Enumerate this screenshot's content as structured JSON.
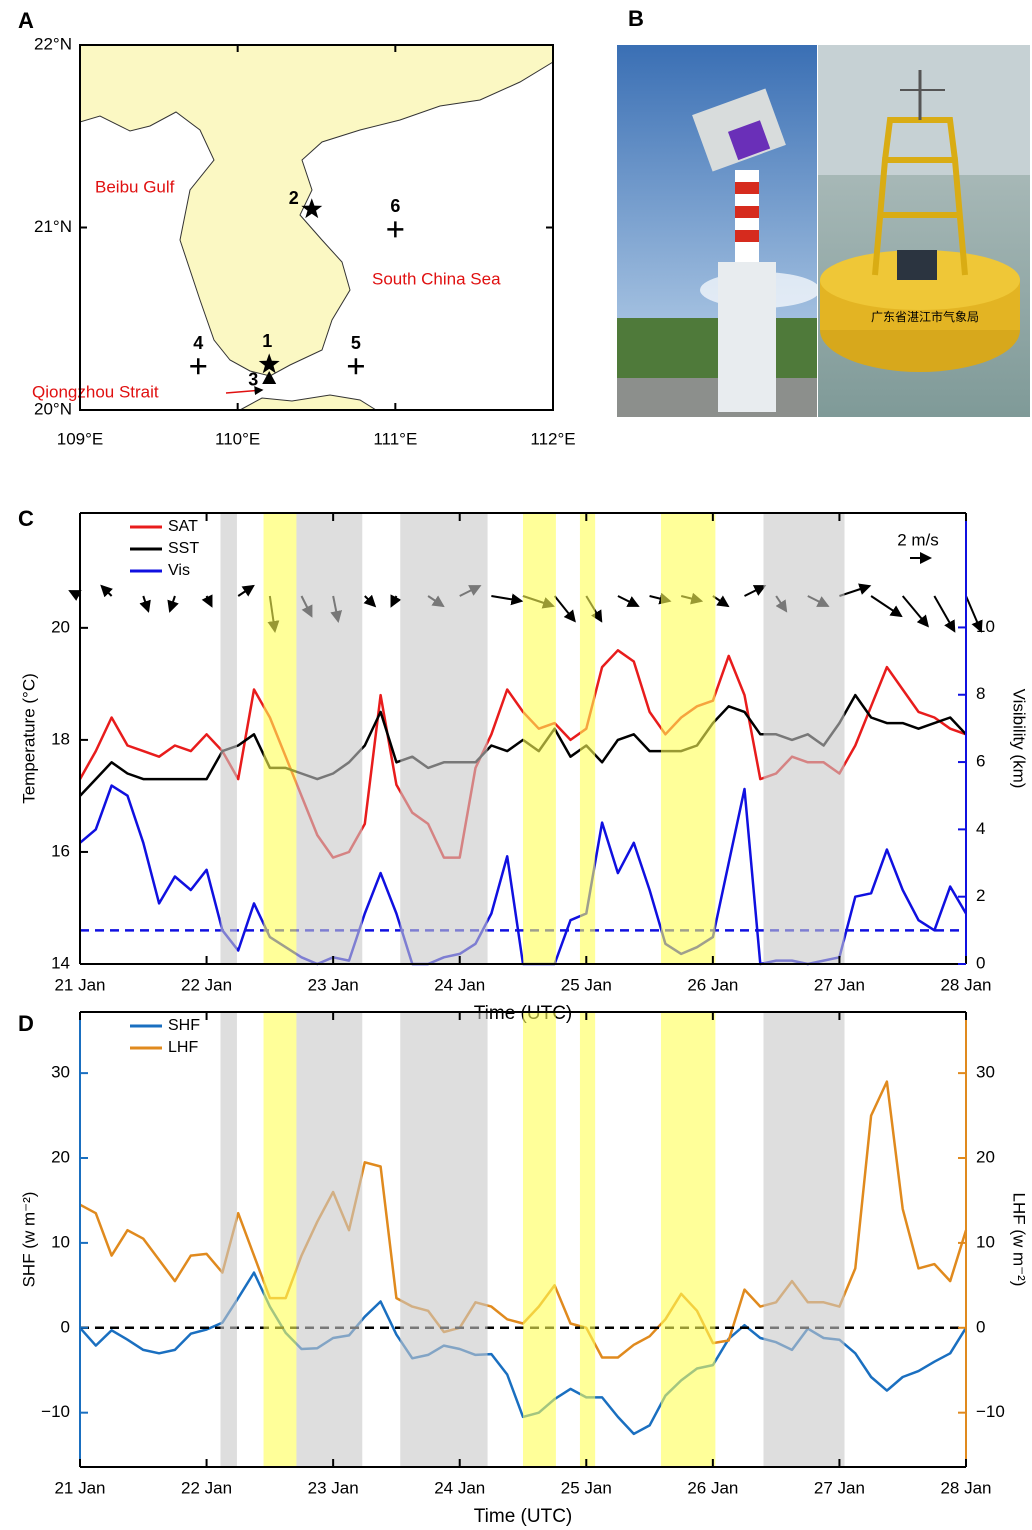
{
  "chart_data": [
    {
      "type": "map",
      "panel_label": "A",
      "xlim": [
        109,
        112
      ],
      "ylim": [
        20,
        22
      ],
      "xticks": [
        {
          "value": 109,
          "label": "109°E"
        },
        {
          "value": 110,
          "label": "110°E"
        },
        {
          "value": 111,
          "label": "111°E"
        },
        {
          "value": 112,
          "label": "112°E"
        }
      ],
      "yticks": [
        {
          "value": 20,
          "label": "20°N"
        },
        {
          "value": 21,
          "label": "21°N"
        },
        {
          "value": 22,
          "label": "22°N"
        }
      ],
      "land_color": "#fbf8c3",
      "sites": [
        {
          "label": "1",
          "lon": 110.2,
          "lat": 20.25,
          "marker": "star"
        },
        {
          "label": "2",
          "lon": 110.47,
          "lat": 21.1,
          "marker": "star"
        },
        {
          "label": "3",
          "lon": 110.2,
          "lat": 20.17,
          "marker": "triangle"
        },
        {
          "label": "4",
          "lon": 109.75,
          "lat": 20.24,
          "marker": "plus"
        },
        {
          "label": "5",
          "lon": 110.75,
          "lat": 20.24,
          "marker": "plus"
        },
        {
          "label": "6",
          "lon": 111.0,
          "lat": 20.99,
          "marker": "plus"
        }
      ],
      "annotations": [
        "Beibu Gulf",
        "South China Sea",
        "Qiongzhou Strait"
      ],
      "annotation_color": "#e01010"
    },
    {
      "type": "line",
      "panel_label": "C",
      "x": [
        0,
        0.125,
        0.25,
        0.375,
        0.5,
        0.625,
        0.75,
        0.875,
        1,
        1.125,
        1.25,
        1.375,
        1.5,
        1.625,
        1.75,
        1.875,
        2,
        2.125,
        2.25,
        2.375,
        2.5,
        2.625,
        2.75,
        2.875,
        3,
        3.125,
        3.25,
        3.375,
        3.5,
        3.625,
        3.75,
        3.875,
        4,
        4.125,
        4.25,
        4.375,
        4.5,
        4.625,
        4.75,
        4.875,
        5,
        5.125,
        5.25,
        5.375,
        5.5,
        5.625,
        5.75,
        5.875,
        6,
        6.125,
        6.25,
        6.375,
        6.5,
        6.625,
        6.75,
        6.875,
        7
      ],
      "xlim": [
        0,
        7
      ],
      "xticks": [
        {
          "value": 0,
          "label": "21 Jan"
        },
        {
          "value": 1,
          "label": "22 Jan"
        },
        {
          "value": 2,
          "label": "23 Jan"
        },
        {
          "value": 3,
          "label": "24 Jan"
        },
        {
          "value": 4,
          "label": "25 Jan"
        },
        {
          "value": 5,
          "label": "26 Jan"
        },
        {
          "value": 6,
          "label": "27 Jan"
        },
        {
          "value": 7,
          "label": "28 Jan"
        }
      ],
      "ylim": [
        14,
        22.05
      ],
      "yticks": [
        14,
        16,
        18,
        20
      ],
      "y2lim": [
        0,
        13.4
      ],
      "y2ticks": [
        0,
        2,
        4,
        6,
        8,
        10
      ],
      "xlabel": "Time (UTC)",
      "ylabel": "Temperature (°C)",
      "y2label": "Visibility (km)",
      "y_axis_color": "#000000",
      "y2_axis_color": "#1010e0",
      "legend": "upper left",
      "series": [
        {
          "name": "SAT",
          "color": "#e81c1c",
          "values": [
            17.3,
            17.8,
            18.4,
            17.9,
            17.8,
            17.7,
            17.9,
            17.8,
            18.1,
            17.8,
            17.3,
            18.9,
            18.4,
            17.7,
            17.0,
            16.3,
            15.9,
            16.0,
            16.5,
            18.8,
            17.2,
            16.7,
            16.5,
            15.9,
            15.9,
            17.5,
            18.1,
            18.9,
            18.5,
            18.2,
            18.3,
            18.0,
            18.2,
            19.3,
            19.6,
            19.4,
            18.5,
            18.1,
            18.4,
            18.6,
            18.7,
            19.5,
            18.8,
            17.3,
            17.4,
            17.7,
            17.6,
            17.6,
            17.4,
            17.9,
            18.6,
            19.3,
            18.9,
            18.5,
            18.4,
            18.2,
            18.1
          ]
        },
        {
          "name": "SST",
          "color": "#000000",
          "values": [
            17.0,
            17.3,
            17.6,
            17.4,
            17.3,
            17.3,
            17.3,
            17.3,
            17.3,
            17.8,
            17.9,
            18.1,
            17.5,
            17.5,
            17.4,
            17.3,
            17.4,
            17.6,
            17.9,
            18.5,
            17.6,
            17.7,
            17.5,
            17.6,
            17.6,
            17.6,
            17.9,
            17.8,
            18.0,
            17.8,
            18.2,
            17.7,
            17.9,
            17.6,
            18.0,
            18.1,
            17.8,
            17.8,
            17.8,
            17.9,
            18.3,
            18.6,
            18.5,
            18.1,
            18.1,
            18.0,
            18.1,
            17.9,
            18.3,
            18.8,
            18.4,
            18.3,
            18.3,
            18.2,
            18.3,
            18.4,
            18.1
          ]
        },
        {
          "name": "Vis",
          "color": "#1010e0",
          "axis": "y2",
          "values": [
            3.6,
            4.0,
            5.3,
            5.0,
            3.6,
            1.8,
            2.6,
            2.2,
            2.8,
            1.0,
            0.4,
            1.8,
            0.8,
            0.5,
            0.2,
            0.0,
            0.2,
            0.1,
            1.5,
            2.7,
            1.5,
            0.0,
            0.0,
            0.2,
            0.3,
            0.6,
            1.5,
            3.2,
            0.0,
            0.0,
            0.0,
            1.3,
            1.5,
            4.2,
            2.7,
            3.6,
            2.2,
            0.6,
            0.3,
            0.5,
            0.8,
            3.0,
            5.2,
            0.0,
            0.1,
            0.1,
            0.0,
            0.1,
            0.2,
            2.0,
            2.1,
            3.4,
            2.2,
            1.3,
            1.0,
            2.3,
            1.5
          ]
        }
      ],
      "reference_lines": [
        {
          "value": 1,
          "axis": "y2",
          "color": "#1010e0"
        }
      ],
      "shaded_periods": [
        {
          "start": 1.11,
          "end": 1.24,
          "color": "#c8c8c8"
        },
        {
          "start": 1.45,
          "end": 1.71,
          "color": "#ffff55"
        },
        {
          "start": 1.71,
          "end": 2.23,
          "color": "#c8c8c8"
        },
        {
          "start": 2.53,
          "end": 3.22,
          "color": "#c8c8c8"
        },
        {
          "start": 3.5,
          "end": 3.76,
          "color": "#ffff55"
        },
        {
          "start": 3.95,
          "end": 4.07,
          "color": "#ffff55"
        },
        {
          "start": 4.59,
          "end": 5.02,
          "color": "#ffff55"
        },
        {
          "start": 5.4,
          "end": 6.04,
          "color": "#c8c8c8"
        }
      ],
      "wind": {
        "x": [
          0,
          0.25,
          0.5,
          0.75,
          1,
          1.25,
          1.5,
          1.75,
          2,
          2.25,
          2.5,
          2.75,
          3,
          3.25,
          3.5,
          3.75,
          4,
          4.25,
          4.5,
          4.75,
          5,
          5.25,
          5.5,
          5.75,
          6,
          6.25,
          6.5,
          6.75,
          7
        ],
        "u": [
          -1,
          -1,
          0.5,
          -0.5,
          0.5,
          1.5,
          0.5,
          1,
          0.5,
          1,
          -0.5,
          1.5,
          2,
          3,
          3,
          2,
          1.5,
          2,
          2,
          2,
          1.5,
          2,
          1,
          2,
          3,
          3,
          2.5,
          2,
          1.5
        ],
        "v": [
          0.5,
          1,
          -1.5,
          -1.5,
          -1,
          1,
          -3.5,
          -2,
          -2.5,
          -1,
          -1,
          -1,
          1,
          -0.5,
          -1,
          -2.5,
          -2.5,
          -1,
          -0.5,
          -0.5,
          -1,
          1,
          -1.5,
          -1,
          1,
          -2,
          -3,
          -3.5,
          -3.5
        ],
        "scale": 2,
        "scale_label": "2 m/s"
      }
    },
    {
      "type": "line",
      "panel_label": "D",
      "x": [
        0,
        0.125,
        0.25,
        0.375,
        0.5,
        0.625,
        0.75,
        0.875,
        1,
        1.125,
        1.25,
        1.375,
        1.5,
        1.625,
        1.75,
        1.875,
        2,
        2.125,
        2.25,
        2.375,
        2.5,
        2.625,
        2.75,
        2.875,
        3,
        3.125,
        3.25,
        3.375,
        3.5,
        3.625,
        3.75,
        3.875,
        4,
        4.125,
        4.25,
        4.375,
        4.5,
        4.625,
        4.75,
        4.875,
        5,
        5.125,
        5.25,
        5.375,
        5.5,
        5.625,
        5.75,
        5.875,
        6,
        6.125,
        6.25,
        6.375,
        6.5,
        6.625,
        6.75,
        6.875,
        7
      ],
      "xlim": [
        0,
        7
      ],
      "xticks": [
        {
          "value": 0,
          "label": "21 Jan"
        },
        {
          "value": 1,
          "label": "22 Jan"
        },
        {
          "value": 2,
          "label": "23 Jan"
        },
        {
          "value": 3,
          "label": "24 Jan"
        },
        {
          "value": 4,
          "label": "25 Jan"
        },
        {
          "value": 5,
          "label": "26 Jan"
        },
        {
          "value": 6,
          "label": "27 Jan"
        },
        {
          "value": 7,
          "label": "28 Jan"
        }
      ],
      "ylim": [
        -16.4,
        37.2
      ],
      "yticks": [
        {
          "value": -10,
          "label": "−10"
        },
        0,
        10,
        20,
        30
      ],
      "y2lim": [
        -16.4,
        37.2
      ],
      "y2ticks": [
        {
          "value": -10,
          "label": "−10"
        },
        0,
        10,
        20,
        30
      ],
      "xlabel": "Time (UTC)",
      "ylabel": "SHF (w m⁻²)",
      "y2label": "LHF (w m⁻²)",
      "y_axis_color": "#1a6fc0",
      "y2_axis_color": "#e08a1e",
      "legend": "upper left",
      "series": [
        {
          "name": "SHF",
          "color": "#1a6fc0",
          "values": [
            0,
            -2.1,
            -0.3,
            -1.4,
            -2.6,
            -3.0,
            -2.6,
            -0.7,
            -0.2,
            0.6,
            3.5,
            6.5,
            2.5,
            -0.6,
            -2.5,
            -2.4,
            -1.2,
            -0.9,
            1.3,
            3.1,
            -0.8,
            -3.6,
            -3.2,
            -2.1,
            -2.5,
            -3.2,
            -3.1,
            -5.5,
            -10.5,
            -10.0,
            -8.4,
            -7.2,
            -8.2,
            -8.2,
            -10.5,
            -12.5,
            -11.5,
            -8.0,
            -6.2,
            -4.8,
            -4.4,
            -1.3,
            0.3,
            -1.2,
            -1.7,
            -2.6,
            -0.1,
            -1.2,
            -1.4,
            -3.0,
            -5.8,
            -7.4,
            -5.8,
            -5.1,
            -4.0,
            -3.0,
            0.0
          ]
        },
        {
          "name": "LHF",
          "color": "#e08a1e",
          "axis": "y2",
          "values": [
            14.5,
            13.5,
            8.5,
            11.5,
            10.5,
            8.0,
            5.5,
            8.5,
            8.7,
            6.5,
            13.5,
            8.5,
            3.5,
            3.5,
            8.5,
            12.5,
            16.0,
            11.5,
            19.5,
            19.0,
            3.5,
            2.5,
            2.0,
            -0.5,
            0.0,
            3.0,
            2.5,
            1.0,
            0.5,
            2.5,
            5.0,
            0.5,
            0.0,
            -3.5,
            -3.5,
            -2.0,
            -1.0,
            1.0,
            4.0,
            2.0,
            -1.8,
            -1.5,
            4.5,
            2.5,
            3.0,
            5.5,
            3.0,
            3.0,
            2.5,
            7.0,
            25.0,
            29.0,
            14.0,
            7.0,
            7.5,
            5.5,
            11.5
          ]
        }
      ],
      "reference_lines": [
        {
          "value": 0,
          "axis": "y",
          "color": "#000000"
        }
      ],
      "shaded_periods": [
        {
          "start": 1.11,
          "end": 1.24,
          "color": "#c8c8c8"
        },
        {
          "start": 1.45,
          "end": 1.71,
          "color": "#ffff55"
        },
        {
          "start": 1.71,
          "end": 2.23,
          "color": "#c8c8c8"
        },
        {
          "start": 2.53,
          "end": 3.22,
          "color": "#c8c8c8"
        },
        {
          "start": 3.5,
          "end": 3.76,
          "color": "#ffff55"
        },
        {
          "start": 3.95,
          "end": 4.07,
          "color": "#ffff55"
        },
        {
          "start": 4.59,
          "end": 5.02,
          "color": "#ffff55"
        },
        {
          "start": 5.4,
          "end": 6.04,
          "color": "#c8c8c8"
        }
      ]
    }
  ],
  "photos": {
    "panel_label": "B",
    "buoy_text": "广东省湛江市气象局"
  }
}
